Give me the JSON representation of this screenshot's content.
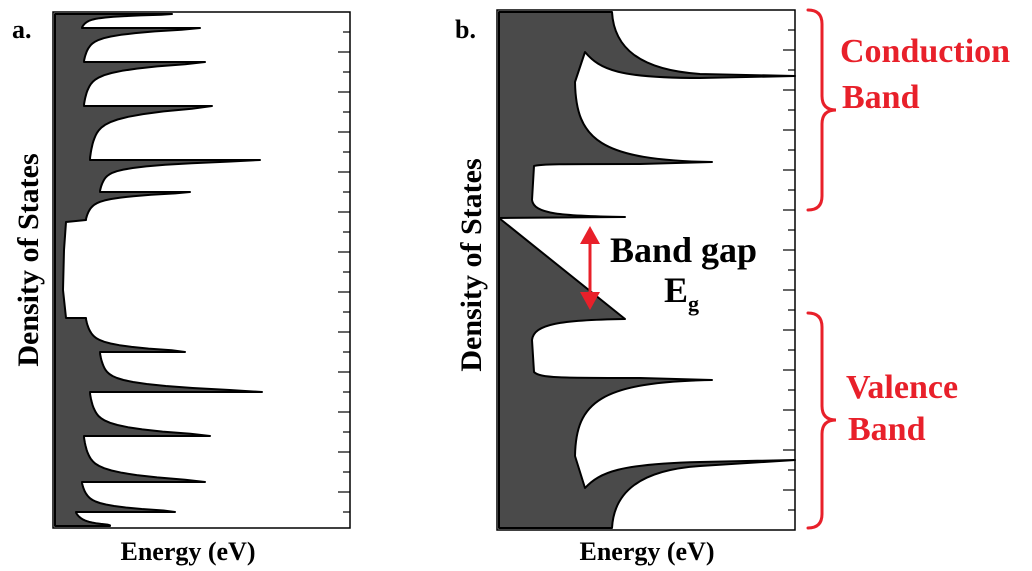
{
  "panels": [
    {
      "tag": "a.",
      "ylabel": "Density of States",
      "xlabel": "Energy (eV)"
    },
    {
      "tag": "b.",
      "ylabel": "Density of States",
      "xlabel": "Energy (eV)"
    }
  ],
  "annotations": {
    "conduction": {
      "line1": "Conduction",
      "line2": "Band"
    },
    "valence": {
      "line1": "Valence",
      "line2": "Band"
    },
    "gap": {
      "label": "Band gap",
      "symbol": "E",
      "subscript": "g"
    }
  },
  "colors": {
    "fill": "#4a4a4a",
    "outline": "#000000",
    "accent": "#e8202a",
    "text": "#000000"
  }
}
